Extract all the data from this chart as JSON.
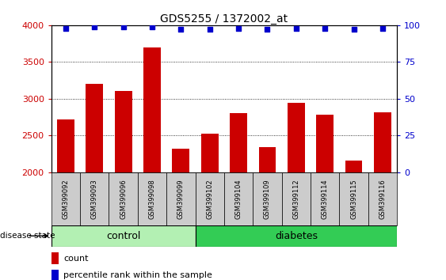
{
  "title": "GDS5255 / 1372002_at",
  "categories": [
    "GSM399092",
    "GSM399093",
    "GSM399096",
    "GSM399098",
    "GSM399099",
    "GSM399102",
    "GSM399104",
    "GSM399109",
    "GSM399112",
    "GSM399114",
    "GSM399115",
    "GSM399116"
  ],
  "bar_values": [
    2720,
    3200,
    3100,
    3700,
    2320,
    2520,
    2800,
    2340,
    2940,
    2780,
    2160,
    2820
  ],
  "percentile_values": [
    98,
    99,
    99,
    99,
    97,
    97,
    98,
    97,
    98,
    98,
    97,
    98
  ],
  "bar_color": "#cc0000",
  "percentile_color": "#0000cc",
  "ylim_left": [
    2000,
    4000
  ],
  "ylim_right": [
    0,
    100
  ],
  "yticks_left": [
    2000,
    2500,
    3000,
    3500,
    4000
  ],
  "yticks_right": [
    0,
    25,
    50,
    75,
    100
  ],
  "n_control": 5,
  "n_diabetes": 7,
  "control_color": "#b3f0b3",
  "diabetes_color": "#33cc55",
  "background_bar_color": "#cccccc",
  "disease_state_label": "disease state",
  "control_label": "control",
  "diabetes_label": "diabetes",
  "legend_count_color": "#cc0000",
  "legend_percentile_color": "#0000cc"
}
